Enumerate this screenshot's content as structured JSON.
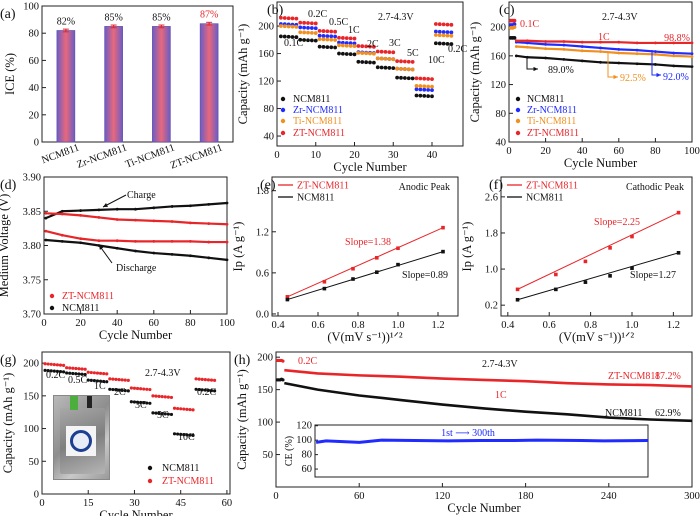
{
  "colors": {
    "NCM811": "#111111",
    "Zr-NCM811": "#1f2bff",
    "Ti-NCM811": "#f0901e",
    "ZT-NCM811": "#e8262a",
    "CE": "#1f2bff"
  },
  "chart_data": [
    {
      "panel": "(a)",
      "type": "bar",
      "categories": [
        "NCM811",
        "Zr-NCM811",
        "Ti-NCM811",
        "ZT-NCM811"
      ],
      "values": [
        82,
        85,
        85,
        87
      ],
      "errors": [
        1,
        1,
        1,
        1
      ],
      "data_labels": [
        "82%",
        "85%",
        "85%",
        "87%"
      ],
      "xlabel": "",
      "ylabel": "ICE (%)",
      "ylim": [
        0,
        100
      ],
      "yticks": [
        "0",
        "20",
        "40",
        "60",
        "80",
        "100"
      ]
    },
    {
      "panel": "(b)",
      "type": "scatter",
      "xlabel": "Cycle Number",
      "ylabel": "Capacity (mAh g⁻¹)",
      "xlim": [
        0,
        48
      ],
      "ylim": [
        25.5,
        235
      ],
      "xticks": [
        "0",
        "10",
        "20",
        "30",
        "40"
      ],
      "yticks": [
        "40",
        "80",
        "120",
        "160",
        "200"
      ],
      "rates": [
        "0.1C",
        "0.2C",
        "0.5C",
        "1C",
        "2C",
        "3C",
        "5C",
        "10C",
        "0.2C"
      ],
      "cycles_per_rate": 5,
      "series": [
        {
          "name": "NCM811",
          "values": [
            185,
            180,
            170,
            160,
            148,
            140,
            125,
            99,
            175
          ]
        },
        {
          "name": "Zr-NCM811",
          "values": [
            203,
            198,
            186,
            176,
            162,
            153,
            138,
            108,
            192
          ]
        },
        {
          "name": "Ti-NCM811",
          "values": [
            200,
            191,
            181,
            172,
            161,
            153,
            138,
            113,
            187
          ]
        },
        {
          "name": "ZT-NCM811",
          "values": [
            212,
            205,
            193,
            183,
            171,
            163,
            149,
            124,
            203
          ]
        }
      ],
      "annotations": [
        "2.7-4.3V"
      ],
      "legend": "bottom-left"
    },
    {
      "panel": "(c)",
      "type": "scatter",
      "xlabel": "Cycle Number",
      "ylabel": "Capacity (mAh g⁻¹)",
      "xlim": [
        0,
        100
      ],
      "ylim": [
        40,
        235
      ],
      "xticks": [
        "0",
        "20",
        "40",
        "60",
        "80",
        "100"
      ],
      "yticks": [
        "40",
        "80",
        "120",
        "160",
        "200"
      ],
      "x_formation": [
        1,
        2,
        3
      ],
      "x": [
        4,
        10,
        20,
        30,
        40,
        50,
        60,
        70,
        80,
        90,
        100
      ],
      "series": [
        {
          "name": "NCM811",
          "formation": [
            185,
            185,
            185
          ],
          "values": [
            160,
            158,
            157,
            155,
            153,
            151,
            150,
            149,
            148,
            146,
            145
          ],
          "retention": "89.0%"
        },
        {
          "name": "Zr-NCM811",
          "formation": [
            203,
            203,
            204
          ],
          "values": [
            179,
            178,
            176,
            175,
            173,
            171,
            169,
            168,
            166,
            164,
            163
          ],
          "retention": "92.0%"
        },
        {
          "name": "Ti-NCM811",
          "formation": [
            199,
            199,
            200
          ],
          "values": [
            173,
            172,
            170,
            169,
            167,
            166,
            164,
            163,
            162,
            160,
            159
          ],
          "retention": "92.5%"
        },
        {
          "name": "ZT-NCM811",
          "formation": [
            209,
            209,
            209
          ],
          "values": [
            181,
            181,
            180,
            180,
            179,
            179,
            179,
            178,
            178,
            178,
            178
          ],
          "retention": "98.8%"
        }
      ],
      "annotations": [
        "2.7-4.3V",
        "0.1C",
        "1C"
      ],
      "legend": "bottom-left"
    },
    {
      "panel": "(d)",
      "type": "line",
      "xlabel": "Cycle Number",
      "ylabel": "Medium Voltage (V)",
      "xlim": [
        0,
        100
      ],
      "ylim": [
        3.7,
        3.9
      ],
      "xticks": [
        "0",
        "20",
        "40",
        "60",
        "80",
        "100"
      ],
      "yticks": [
        "3.70",
        "3.75",
        "3.80",
        "3.85",
        "3.90"
      ],
      "x": [
        1,
        10,
        20,
        30,
        40,
        50,
        60,
        70,
        80,
        90,
        100
      ],
      "series": [
        {
          "name": "NCM811",
          "branch": "charge",
          "values": [
            3.84,
            3.85,
            3.851,
            3.852,
            3.853,
            3.853,
            3.855,
            3.857,
            3.858,
            3.86,
            3.862
          ]
        },
        {
          "name": "ZT-NCM811",
          "branch": "charge",
          "values": [
            3.847,
            3.846,
            3.844,
            3.841,
            3.838,
            3.837,
            3.836,
            3.835,
            3.833,
            3.832,
            3.831
          ]
        },
        {
          "name": "ZT-NCM811",
          "branch": "discharge",
          "values": [
            3.821,
            3.815,
            3.81,
            3.807,
            3.807,
            3.806,
            3.806,
            3.806,
            3.806,
            3.805,
            3.805
          ]
        },
        {
          "name": "NCM811",
          "branch": "discharge",
          "values": [
            3.808,
            3.806,
            3.804,
            3.8,
            3.796,
            3.792,
            3.789,
            3.787,
            3.785,
            3.782,
            3.779
          ]
        }
      ],
      "annotations": [
        "Charge",
        "Discharge"
      ],
      "legend_entries": [
        "ZT-NCM811",
        "NCM811"
      ],
      "legend": "bottom-left"
    },
    {
      "panel": "(e)",
      "type": "line",
      "xlabel": "(V(mV s⁻¹))¹ᐟ²",
      "ylabel": "Ip (A g⁻¹)",
      "xlim": [
        0.37,
        1.3
      ],
      "ylim": [
        -0.03,
        2.0
      ],
      "xticks": [
        "0.4",
        "0.6",
        "0.8",
        "1.0",
        "1.2"
      ],
      "yticks": [
        "0.0",
        "0.6",
        "1.2",
        "1.8"
      ],
      "x": [
        0.447,
        0.632,
        0.775,
        0.894,
        1.0,
        1.225
      ],
      "series": [
        {
          "name": "ZT-NCM811",
          "values": [
            0.25,
            0.47,
            0.66,
            0.82,
            0.96,
            1.26
          ],
          "slope_label": "Slope=1.38"
        },
        {
          "name": "NCM811",
          "values": [
            0.21,
            0.37,
            0.51,
            0.61,
            0.72,
            0.91
          ],
          "slope_label": "Slope=0.89"
        }
      ],
      "annotations": [
        "Anodic Peak"
      ],
      "legend": "top-left"
    },
    {
      "panel": "(f)",
      "type": "line",
      "xlabel": "(V(mV s⁻¹))¹ᐟ²",
      "ylabel": "Ip (A g⁻¹)",
      "xlim": [
        0.367,
        1.29
      ],
      "ylim": [
        -0.04,
        3.04
      ],
      "xticks": [
        "0.4",
        "0.6",
        "0.8",
        "1.0",
        "1.2"
      ],
      "yticks": [
        "0.2",
        "1.0",
        "1.8",
        "2.6"
      ],
      "x": [
        0.447,
        0.632,
        0.775,
        0.894,
        1.0,
        1.225
      ],
      "series": [
        {
          "name": "ZT-NCM811",
          "values": [
            0.55,
            0.88,
            1.17,
            1.47,
            1.72,
            2.25
          ],
          "slope_label": "Slope=2.25"
        },
        {
          "name": "NCM811",
          "values": [
            0.32,
            0.55,
            0.71,
            0.85,
            1.02,
            1.36
          ],
          "slope_label": "Slope=1.27"
        }
      ],
      "annotations": [
        "Cathodic Peak"
      ],
      "legend": "top-left"
    },
    {
      "panel": "(g)",
      "type": "scatter",
      "xlabel": "Cycle Number",
      "ylabel": "Capacity (mAh g⁻¹)",
      "xlim": [
        0,
        61
      ],
      "ylim": [
        0,
        217
      ],
      "xticks": [
        "0",
        "15",
        "30",
        "45",
        "60"
      ],
      "yticks": [
        "0",
        "50",
        "100",
        "150",
        "200"
      ],
      "rates": [
        "0.2C",
        "0.5C",
        "1C",
        "2C",
        "3C",
        "5C",
        "10C",
        "0.2C"
      ],
      "cycles_per_rate": 7,
      "series": [
        {
          "name": "NCM811",
          "values": [
            189,
            185,
            174,
            160,
            141,
            124,
            92,
            160
          ]
        },
        {
          "name": "ZT-NCM811",
          "values": [
            199,
            193,
            186,
            176,
            162,
            150,
            131,
            176
          ]
        }
      ],
      "annotations": [
        "2.7-4.3V"
      ],
      "legend": "bottom-right"
    },
    {
      "panel": "(h)",
      "type": "scatter",
      "xlabel": "Cycle Number",
      "ylabel": "Capacity (mAh g⁻¹)",
      "xlim": [
        0,
        300
      ],
      "ylim": [
        0,
        208
      ],
      "xticks": [
        "0",
        "60",
        "120",
        "180",
        "240",
        "300"
      ],
      "yticks": [
        "50",
        "100",
        "150",
        "200"
      ],
      "x_formation": [
        1,
        2,
        3,
        4,
        5
      ],
      "x": [
        6,
        30,
        60,
        90,
        120,
        150,
        180,
        210,
        240,
        270,
        300
      ],
      "series": [
        {
          "name": "ZT-NCM811",
          "formation": [
            195,
            195,
            195,
            195,
            194
          ],
          "values": [
            180,
            175,
            172,
            170,
            167,
            165,
            163,
            160,
            158,
            157,
            155
          ],
          "retention": "87.2%"
        },
        {
          "name": "NCM811",
          "formation": [
            165,
            165,
            165,
            166,
            165
          ],
          "values": [
            160,
            150,
            141,
            134,
            127,
            121,
            116,
            112,
            107,
            104,
            102
          ],
          "retention": "62.9%"
        }
      ],
      "annotations": [
        "0.2C",
        "2.7-4.3V",
        "1C"
      ],
      "inset": {
        "ylabel": "CE (%)",
        "ylim": [
          49,
          121
        ],
        "xlim": [
          0,
          300
        ],
        "yticks": [
          "60",
          "80",
          "100",
          "120"
        ],
        "x": [
          1,
          10,
          40,
          60,
          90,
          120,
          150,
          180,
          200,
          240,
          260,
          300
        ],
        "values": [
          97,
          99,
          97,
          100,
          99.5,
          99,
          99.5,
          99.5,
          100,
          99.5,
          99,
          99.5
        ],
        "annotation": "1st ⟶ 300th"
      }
    }
  ]
}
